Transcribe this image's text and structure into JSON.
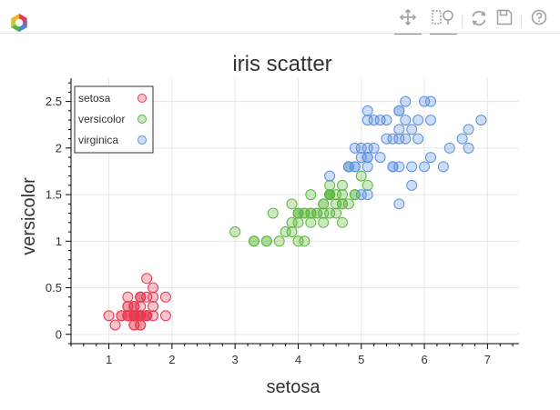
{
  "toolbar": {
    "logo": "bokeh-logo-icon",
    "tools": [
      {
        "name": "pan-tool-icon",
        "active": true
      },
      {
        "name": "box-zoom-tool-icon",
        "active": true
      },
      {
        "name": "reset-tool-icon",
        "active": false
      },
      {
        "name": "save-tool-icon",
        "active": false
      },
      {
        "name": "help-tool-icon",
        "active": false
      }
    ]
  },
  "chart_data": {
    "type": "scatter",
    "title": "iris scatter",
    "xlabel": "setosa",
    "ylabel": "versicolor",
    "xlim": [
      0.4,
      7.5
    ],
    "ylim": [
      -0.1,
      2.75
    ],
    "x_ticks": [
      1,
      2,
      3,
      4,
      5,
      6,
      7
    ],
    "y_ticks": [
      0,
      0.5,
      1,
      1.5,
      2,
      2.5
    ],
    "x_tick_labels": [
      "1",
      "2",
      "3",
      "4",
      "5",
      "6",
      "7"
    ],
    "y_tick_labels": [
      "0",
      "0.5",
      "1",
      "1.5",
      "2",
      "2.5"
    ],
    "grid": true,
    "legend_position": "top-left",
    "series": [
      {
        "name": "setosa",
        "color": "#e8384f",
        "x": [
          1.4,
          1.4,
          1.3,
          1.5,
          1.4,
          1.7,
          1.4,
          1.5,
          1.4,
          1.5,
          1.5,
          1.6,
          1.4,
          1.1,
          1.2,
          1.5,
          1.3,
          1.4,
          1.7,
          1.5,
          1.7,
          1.5,
          1.0,
          1.7,
          1.9,
          1.6,
          1.6,
          1.5,
          1.4,
          1.6,
          1.6,
          1.5,
          1.5,
          1.4,
          1.5,
          1.2,
          1.3,
          1.4,
          1.3,
          1.5,
          1.3,
          1.3,
          1.3,
          1.6,
          1.9,
          1.4,
          1.6,
          1.4,
          1.5,
          1.4
        ],
        "y": [
          0.2,
          0.2,
          0.2,
          0.2,
          0.2,
          0.4,
          0.3,
          0.2,
          0.2,
          0.1,
          0.2,
          0.2,
          0.1,
          0.1,
          0.2,
          0.4,
          0.4,
          0.3,
          0.3,
          0.3,
          0.2,
          0.4,
          0.2,
          0.5,
          0.2,
          0.2,
          0.4,
          0.2,
          0.2,
          0.2,
          0.2,
          0.4,
          0.1,
          0.2,
          0.2,
          0.2,
          0.2,
          0.1,
          0.2,
          0.2,
          0.3,
          0.3,
          0.2,
          0.6,
          0.4,
          0.3,
          0.2,
          0.2,
          0.2,
          0.2
        ]
      },
      {
        "name": "versicolor",
        "color": "#5ab738",
        "x": [
          4.7,
          4.5,
          4.9,
          4.0,
          4.6,
          4.5,
          4.7,
          3.3,
          4.6,
          3.9,
          3.5,
          4.2,
          4.0,
          4.7,
          3.6,
          4.4,
          4.5,
          4.1,
          4.5,
          3.9,
          4.8,
          4.0,
          4.9,
          4.7,
          4.3,
          4.4,
          4.8,
          5.0,
          4.5,
          3.5,
          3.8,
          3.7,
          3.9,
          5.1,
          4.5,
          4.5,
          4.7,
          4.4,
          4.1,
          4.0,
          4.4,
          4.6,
          4.0,
          3.3,
          4.2,
          4.2,
          4.2,
          4.3,
          3.0,
          4.1
        ],
        "y": [
          1.4,
          1.5,
          1.5,
          1.3,
          1.5,
          1.3,
          1.6,
          1.0,
          1.3,
          1.4,
          1.0,
          1.5,
          1.0,
          1.4,
          1.3,
          1.4,
          1.5,
          1.0,
          1.5,
          1.1,
          1.8,
          1.3,
          1.5,
          1.2,
          1.3,
          1.4,
          1.4,
          1.7,
          1.5,
          1.0,
          1.1,
          1.0,
          1.2,
          1.6,
          1.5,
          1.6,
          1.5,
          1.3,
          1.3,
          1.3,
          1.2,
          1.4,
          1.2,
          1.0,
          1.3,
          1.2,
          1.3,
          1.3,
          1.1,
          1.3
        ]
      },
      {
        "name": "virginica",
        "color": "#5b90e0",
        "x": [
          6.0,
          5.1,
          5.9,
          5.6,
          5.8,
          6.6,
          4.5,
          6.3,
          5.8,
          6.1,
          5.1,
          5.3,
          5.5,
          5.0,
          5.1,
          5.3,
          5.5,
          6.7,
          6.9,
          5.0,
          5.7,
          4.9,
          6.7,
          4.9,
          5.7,
          6.0,
          4.8,
          4.9,
          5.6,
          5.8,
          6.1,
          6.4,
          5.6,
          5.1,
          5.6,
          6.1,
          5.6,
          5.5,
          4.8,
          5.4,
          5.6,
          5.1,
          5.1,
          5.9,
          5.7,
          5.2,
          5.0,
          5.2,
          5.4,
          5.1
        ],
        "y": [
          2.5,
          1.9,
          2.1,
          1.8,
          2.2,
          2.1,
          1.7,
          1.8,
          1.8,
          2.5,
          2.0,
          1.9,
          2.1,
          2.0,
          2.4,
          2.3,
          1.8,
          2.2,
          2.3,
          1.5,
          2.3,
          2.0,
          2.0,
          1.8,
          2.1,
          1.8,
          1.8,
          1.8,
          2.1,
          1.6,
          1.9,
          2.0,
          2.2,
          1.5,
          1.4,
          2.3,
          2.4,
          1.8,
          1.8,
          2.1,
          2.4,
          2.3,
          1.9,
          2.3,
          2.5,
          2.3,
          1.9,
          2.0,
          2.3,
          1.8
        ]
      }
    ]
  }
}
